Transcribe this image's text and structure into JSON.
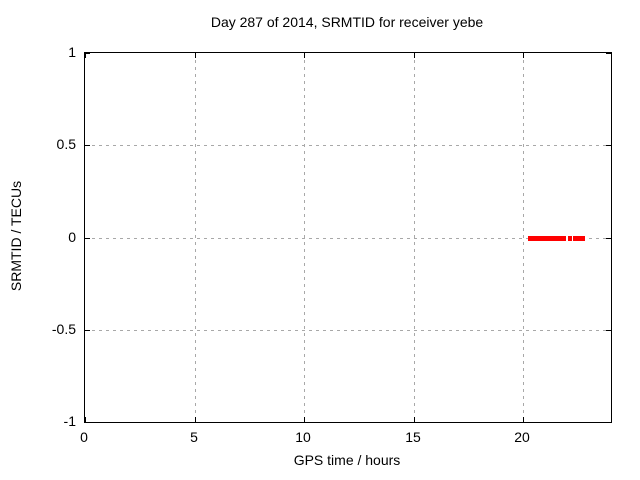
{
  "chart_data": {
    "type": "scatter",
    "title": "Day 287 of 2014, SRMTID for receiver yebe",
    "xlabel": "GPS time / hours",
    "ylabel": "SRMTID / TECUs",
    "xlim": [
      0,
      24
    ],
    "ylim": [
      -1,
      1
    ],
    "xticks": [
      {
        "value": 0,
        "label": "0"
      },
      {
        "value": 5,
        "label": "5"
      },
      {
        "value": 10,
        "label": "10"
      },
      {
        "value": 15,
        "label": "15"
      },
      {
        "value": 20,
        "label": "20"
      }
    ],
    "yticks": [
      {
        "value": 1,
        "label": "1"
      },
      {
        "value": 0.5,
        "label": "0.5"
      },
      {
        "value": 0,
        "label": "0"
      },
      {
        "value": -0.5,
        "label": "-0.5"
      },
      {
        "value": -1,
        "label": "-1"
      }
    ],
    "grid": true,
    "grid_style": "dashed",
    "legend": "none",
    "series": [
      {
        "name": "SRMTID",
        "marker": "dense-points-band",
        "color": "#ff0000",
        "y": 0,
        "segments_x_hours": [
          [
            20.2,
            21.95
          ],
          [
            22.05,
            22.2
          ],
          [
            22.25,
            22.8
          ]
        ]
      }
    ]
  },
  "colors": {
    "background": "#ffffff",
    "axis": "#000000",
    "grid": "#a8a8a8",
    "data": "#ff0000",
    "text": "#000000"
  }
}
